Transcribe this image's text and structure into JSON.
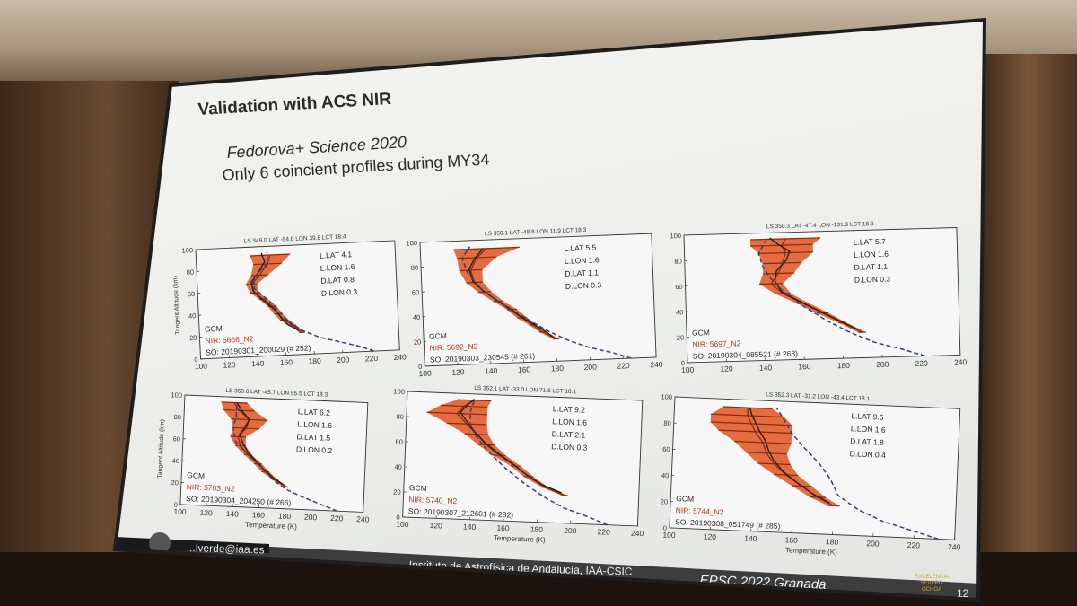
{
  "slide": {
    "title": "Validation with ACS NIR",
    "subtitle_1": "Fedorova+  Science 2020",
    "subtitle_2": "Only 6 coincient profiles during MY34"
  },
  "footer": {
    "email": "...lverde@iaa.es",
    "institute": "Instituto de Astrofísica de Andalucía, IAA-CSIC",
    "conference": "EPSC 2022   Granada",
    "page": "12",
    "badge": "EXCELENCIA SEVERO OCHOA"
  },
  "colors": {
    "obs_fill": "#e0541f",
    "obs_line": "#8a2a10",
    "so_line": "#222222",
    "gcm_line": "#3a3f6e",
    "gcm_label": "#2a2a2a",
    "nir_label": "#b03a1a"
  },
  "chart_data": [
    {
      "type": "line",
      "header": "LS 349.0   LAT -54.8   LON  39.8   LCT 18.4",
      "ylabel": "Tangent Altitude (km)",
      "xlabel": "",
      "xlim": [
        100,
        240
      ],
      "ylim": [
        0,
        100
      ],
      "xticks": [
        "100",
        "120",
        "140",
        "160",
        "180",
        "200",
        "220",
        "240"
      ],
      "yticks": [
        "0",
        "20",
        "40",
        "60",
        "80",
        "100"
      ],
      "params": [
        "L.LAT  4.1",
        "L.LON  1.6",
        "D.LAT  0.8",
        "D.LON  0.3"
      ],
      "legend": [
        "GCM",
        "NIR: 5666_N2",
        "SO: 20190301_200029 (# 252)"
      ],
      "series": [
        {
          "name": "GCM",
          "x": [
            222,
            212,
            198,
            184,
            172,
            162,
            150,
            140,
            140,
            150,
            150
          ],
          "y": [
            0,
            5,
            10,
            15,
            22,
            32,
            50,
            62,
            72,
            85,
            95
          ]
        },
        {
          "name": "NIR",
          "x": [
            172,
            166,
            160,
            156,
            152,
            146,
            140,
            138,
            144,
            150,
            152
          ],
          "y": [
            20,
            27,
            32,
            38,
            45,
            52,
            58,
            66,
            74,
            84,
            92
          ],
          "err": [
            2,
            2,
            3,
            3,
            3,
            3,
            3,
            4,
            6,
            10,
            14
          ]
        },
        {
          "name": "SO",
          "x": [
            170,
            162,
            158,
            155,
            150,
            144,
            139,
            138,
            143,
            148,
            146
          ],
          "y": [
            22,
            28,
            34,
            40,
            46,
            53,
            60,
            68,
            76,
            86,
            94
          ]
        }
      ]
    },
    {
      "type": "line",
      "header": "LS 350.1   LAT -48.8   LON  11.9   LCT 18.3",
      "ylabel": "",
      "xlabel": "",
      "xlim": [
        100,
        240
      ],
      "ylim": [
        0,
        100
      ],
      "xticks": [
        "100",
        "120",
        "140",
        "160",
        "180",
        "200",
        "220",
        "240"
      ],
      "yticks": [
        "0",
        "20",
        "40",
        "60",
        "80",
        "100"
      ],
      "params": [
        "L.LAT  5.5",
        "L.LON  1.6",
        "D.LAT  1.1",
        "D.LON  0.3"
      ],
      "legend": [
        "GCM",
        "NIR: 5692_N2",
        "SO: 20190303_230545 (# 261)"
      ],
      "series": [
        {
          "name": "GCM",
          "x": [
            225,
            214,
            200,
            188,
            176,
            164,
            150,
            136,
            128,
            125,
            130
          ],
          "y": [
            0,
            5,
            10,
            16,
            24,
            34,
            46,
            60,
            74,
            86,
            95
          ]
        },
        {
          "name": "NIR",
          "x": [
            180,
            172,
            166,
            160,
            154,
            146,
            138,
            132,
            130,
            134,
            140
          ],
          "y": [
            18,
            24,
            30,
            36,
            43,
            50,
            58,
            66,
            76,
            86,
            93
          ],
          "err": [
            2,
            2,
            2,
            3,
            3,
            3,
            4,
            5,
            7,
            12,
            20
          ]
        },
        {
          "name": "SO",
          "x": [
            178,
            172,
            165,
            158,
            152,
            145,
            137,
            131,
            129,
            133,
            138
          ],
          "y": [
            20,
            26,
            32,
            38,
            44,
            51,
            59,
            67,
            77,
            86,
            93
          ]
        }
      ]
    },
    {
      "type": "line",
      "header": "LS 350.3   LAT -47.4   LON -131.9   LCT 18.3",
      "ylabel": "",
      "xlabel": "",
      "xlim": [
        100,
        240
      ],
      "ylim": [
        0,
        100
      ],
      "xticks": [
        "100",
        "120",
        "140",
        "160",
        "180",
        "200",
        "220",
        "240"
      ],
      "yticks": [
        "0",
        "20",
        "40",
        "60",
        "80",
        "100"
      ],
      "params": [
        "L.LAT  5.7",
        "L.LON  1.6",
        "D.LAT  1.1",
        "D.LON  0.3"
      ],
      "legend": [
        "GCM",
        "NIR: 5697_N2",
        "SO: 20190304_085521 (# 263)"
      ],
      "series": [
        {
          "name": "GCM",
          "x": [
            222,
            210,
            196,
            184,
            172,
            160,
            150,
            144,
            140,
            138,
            142
          ],
          "y": [
            0,
            6,
            12,
            20,
            30,
            42,
            54,
            64,
            74,
            84,
            94
          ]
        },
        {
          "name": "NIR",
          "x": [
            190,
            180,
            170,
            160,
            150,
            144,
            148,
            150,
            152,
            150,
            152
          ],
          "y": [
            20,
            28,
            36,
            44,
            52,
            60,
            68,
            76,
            84,
            90,
            95
          ],
          "err": [
            2,
            2,
            3,
            3,
            4,
            6,
            8,
            10,
            14,
            16,
            18
          ]
        },
        {
          "name": "SO",
          "x": [
            188,
            178,
            168,
            158,
            149,
            146,
            147,
            152,
            154,
            148,
            144
          ],
          "y": [
            22,
            30,
            38,
            46,
            54,
            62,
            70,
            78,
            85,
            91,
            96
          ]
        }
      ]
    },
    {
      "type": "line",
      "header": "LS 350.6   LAT -45.7   LON  55.5   LCT 18.3",
      "ylabel": "Tangent Altitude (km)",
      "xlabel": "Temperature (K)",
      "xlim": [
        100,
        240
      ],
      "ylim": [
        0,
        100
      ],
      "xticks": [
        "100",
        "120",
        "140",
        "160",
        "180",
        "200",
        "220",
        "240"
      ],
      "yticks": [
        "0",
        "20",
        "40",
        "60",
        "80",
        "100"
      ],
      "params": [
        "L.LAT  6.2",
        "L.LON  1.6",
        "D.LAT  1.5",
        "D.LON  0.2"
      ],
      "legend": [
        "GCM",
        "NIR: 5703_N2",
        "SO: 20190304_204250 (# 266)"
      ],
      "series": [
        {
          "name": "GCM",
          "x": [
            220,
            206,
            192,
            180,
            170,
            162,
            150,
            140,
            138,
            140,
            140
          ],
          "y": [
            0,
            6,
            12,
            18,
            26,
            36,
            48,
            60,
            72,
            84,
            95
          ]
        },
        {
          "name": "NIR",
          "x": [
            180,
            172,
            164,
            158,
            150,
            144,
            142,
            148,
            150,
            142,
            138
          ],
          "y": [
            20,
            26,
            33,
            40,
            48,
            56,
            64,
            72,
            80,
            88,
            95
          ],
          "err": [
            2,
            2,
            3,
            3,
            3,
            4,
            6,
            10,
            14,
            12,
            10
          ]
        },
        {
          "name": "SO",
          "x": [
            178,
            170,
            163,
            157,
            150,
            146,
            143,
            147,
            150,
            144,
            140
          ],
          "y": [
            22,
            28,
            35,
            42,
            50,
            58,
            66,
            73,
            80,
            88,
            95
          ]
        }
      ]
    },
    {
      "type": "line",
      "header": "LS 352.1   LAT -33.0   LON  71.6   LCT 18.1",
      "ylabel": "",
      "xlabel": "Temperature (K)",
      "xlim": [
        100,
        240
      ],
      "ylim": [
        0,
        100
      ],
      "xticks": [
        "100",
        "120",
        "140",
        "160",
        "180",
        "200",
        "220",
        "240"
      ],
      "yticks": [
        "0",
        "20",
        "40",
        "60",
        "80",
        "100"
      ],
      "params": [
        "L.LAT  9.2",
        "L.LON  1.6",
        "D.LAT  2.1",
        "D.LON  0.3"
      ],
      "legend": [
        "GCM",
        "NIR: 5740_N2",
        "SO: 20190307_212601 (# 282)"
      ],
      "series": [
        {
          "name": "GCM",
          "x": [
            222,
            210,
            196,
            184,
            172,
            160,
            150,
            142,
            138,
            138,
            140
          ],
          "y": [
            0,
            6,
            12,
            20,
            30,
            42,
            54,
            66,
            76,
            86,
            95
          ]
        },
        {
          "name": "NIR",
          "x": [
            196,
            184,
            174,
            166,
            156,
            148,
            142,
            136,
            130,
            134,
            140
          ],
          "y": [
            22,
            28,
            36,
            44,
            52,
            60,
            68,
            76,
            84,
            90,
            95
          ],
          "err": [
            2,
            2,
            3,
            3,
            4,
            5,
            7,
            12,
            18,
            14,
            10
          ]
        },
        {
          "name": "SO",
          "x": [
            194,
            182,
            172,
            164,
            155,
            147,
            141,
            136,
            132,
            136,
            140
          ],
          "y": [
            24,
            30,
            38,
            46,
            54,
            62,
            70,
            78,
            85,
            91,
            96
          ]
        }
      ]
    },
    {
      "type": "line",
      "header": "LS 352.3   LAT -31.2   LON  -43.4   LCT 18.1",
      "ylabel": "",
      "xlabel": "Temperature (K)",
      "xlim": [
        100,
        240
      ],
      "ylim": [
        0,
        100
      ],
      "xticks": [
        "100",
        "120",
        "140",
        "160",
        "180",
        "200",
        "220",
        "240"
      ],
      "yticks": [
        "0",
        "20",
        "40",
        "60",
        "80",
        "100"
      ],
      "params": [
        "L.LAT  9.6",
        "L.LON  1.6",
        "D.LAT  1.8",
        "D.LON  0.4"
      ],
      "legend": [
        "GCM",
        "NIR: 5744_N2",
        "SO: 20190308_051749 (# 285)"
      ],
      "series": [
        {
          "name": "GCM",
          "x": [
            232,
            218,
            204,
            192,
            182,
            178,
            172,
            164,
            158,
            154,
            150
          ],
          "y": [
            0,
            6,
            12,
            20,
            30,
            42,
            54,
            66,
            76,
            86,
            95
          ]
        },
        {
          "name": "NIR",
          "x": [
            180,
            172,
            164,
            156,
            150,
            146,
            144,
            140,
            138,
            136,
            136
          ],
          "y": [
            22,
            28,
            36,
            44,
            52,
            60,
            68,
            76,
            82,
            88,
            94
          ],
          "err": [
            3,
            4,
            5,
            6,
            8,
            10,
            14,
            18,
            20,
            18,
            12
          ]
        },
        {
          "name": "SO",
          "x": [
            178,
            170,
            162,
            155,
            150,
            147,
            145,
            142,
            140,
            138,
            137
          ],
          "y": [
            24,
            30,
            38,
            46,
            54,
            62,
            70,
            77,
            83,
            89,
            94
          ]
        }
      ]
    }
  ]
}
